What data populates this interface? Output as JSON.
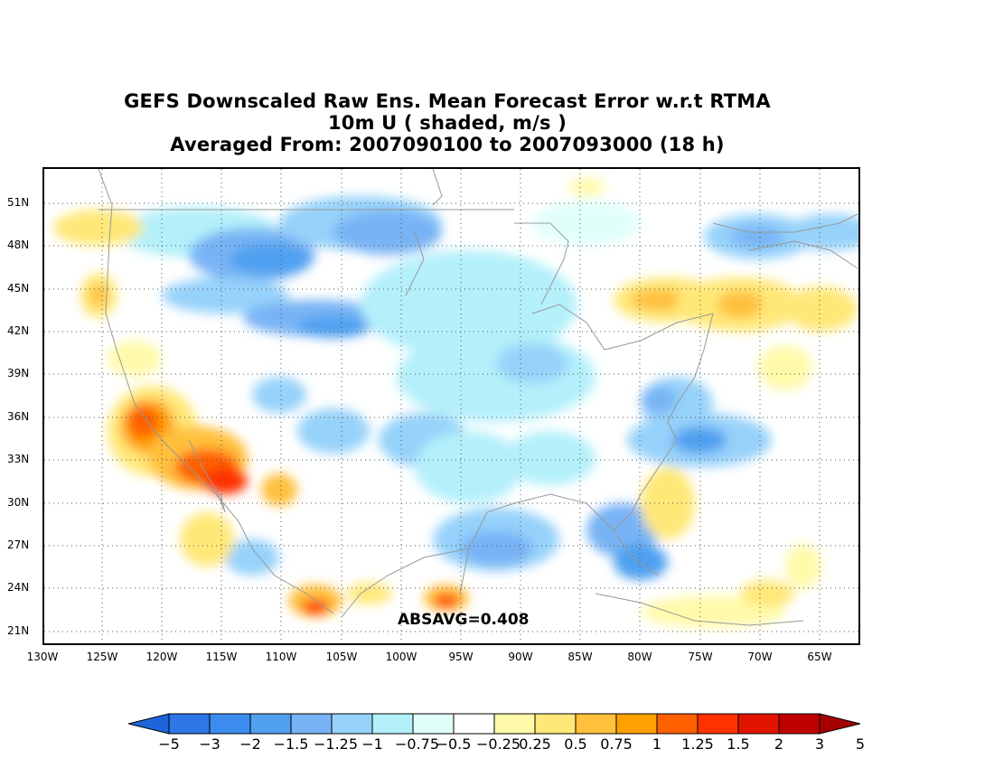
{
  "title": {
    "line1": "GEFS Downscaled Raw Ens. Mean Forecast Error w.r.t RTMA",
    "line2": "10m U ( shaded, m/s )",
    "line3": "Averaged From: 2007090100 to 2007093000 (18 h)"
  },
  "map": {
    "lat_labels": [
      "51N",
      "48N",
      "45N",
      "42N",
      "39N",
      "36N",
      "33N",
      "30N",
      "27N",
      "24N",
      "21N"
    ],
    "lon_labels": [
      "130W",
      "125W",
      "120W",
      "115W",
      "110W",
      "105W",
      "100W",
      "95W",
      "90W",
      "85W",
      "80W",
      "75W",
      "70W",
      "65W"
    ],
    "grid": "dotted",
    "annotation": "ABSAVG=0.408"
  },
  "colorbar": {
    "labels": [
      "−5",
      "−3",
      "−2",
      "−1.5",
      "−1.25",
      "−1",
      "−0.75",
      "−0.5",
      "−0.25",
      "0.25",
      "0.5",
      "0.75",
      "1",
      "1.25",
      "1.5",
      "2",
      "3",
      "5"
    ],
    "colors": [
      "#1e64dc",
      "#2d78e6",
      "#3c8cf0",
      "#50a0f0",
      "#78b4f5",
      "#96d2fa",
      "#b4f0fa",
      "#e1fffa",
      "#ffffff",
      "#fffaaa",
      "#ffe878",
      "#ffc03c",
      "#ffa000",
      "#ff6000",
      "#ff3200",
      "#e11400",
      "#c00000",
      "#a50000"
    ],
    "extend": "both"
  }
}
